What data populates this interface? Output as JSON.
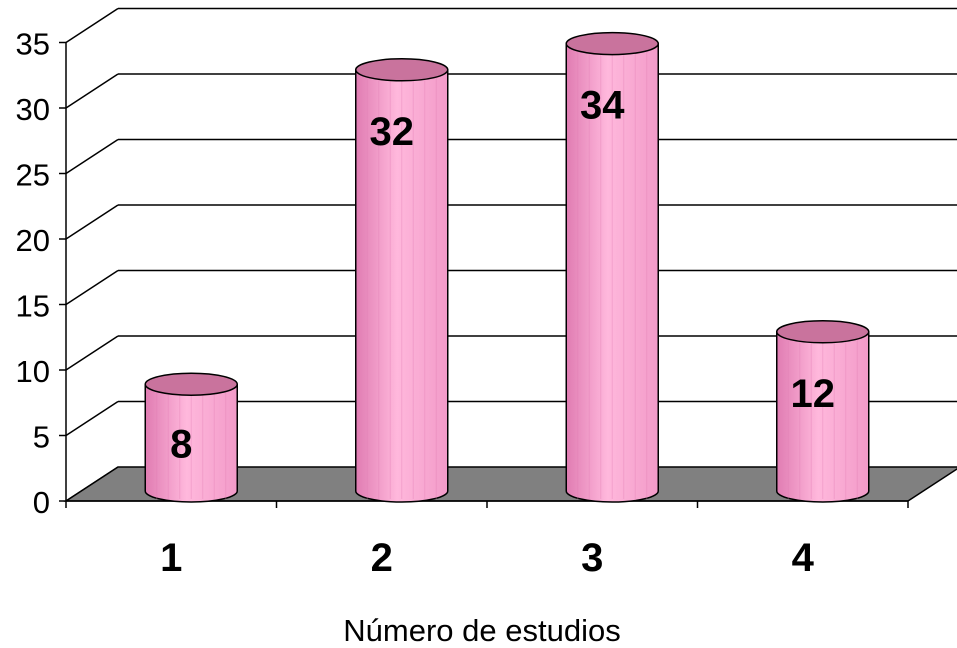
{
  "chart_data": {
    "type": "bar",
    "style": "3d-cylinder",
    "categories": [
      "1",
      "2",
      "3",
      "4"
    ],
    "values": [
      8,
      32,
      34,
      12
    ],
    "data_labels": [
      "8",
      "32",
      "34",
      "12"
    ],
    "xlabel": "Número de estudios",
    "ylabel": "",
    "title": "",
    "ylim": [
      0,
      35
    ],
    "yticks": [
      "0",
      "5",
      "10",
      "15",
      "20",
      "25",
      "30",
      "35"
    ],
    "grid": true,
    "legend": "none",
    "colors": {
      "bar_front": "#f29ac8",
      "bar_shade": "#e07cb2",
      "bar_highlight": "#ffb8dc",
      "bar_top": "#c9739d",
      "floor": "#808080",
      "gridline": "#000000"
    }
  }
}
